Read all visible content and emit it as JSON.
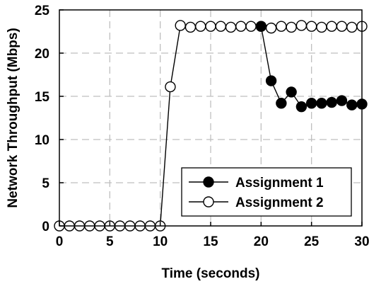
{
  "chart_data": {
    "type": "line",
    "title": "",
    "xlabel": "Time (seconds)",
    "ylabel": "Network Throughput (Mbps)",
    "xlim": [
      0,
      30
    ],
    "ylim": [
      0,
      25
    ],
    "xticks": [
      0,
      5,
      10,
      15,
      20,
      25,
      30
    ],
    "yticks": [
      0,
      5,
      10,
      15,
      20,
      25
    ],
    "grid": true,
    "legend_position": "bottom-right",
    "series": [
      {
        "name": "Assignment 1",
        "marker": "filled-circle",
        "color": "#000000",
        "x": [
          20,
          21,
          22,
          23,
          24,
          25,
          26,
          27,
          28,
          29,
          30
        ],
        "y": [
          23.1,
          16.8,
          14.2,
          15.5,
          13.8,
          14.2,
          14.2,
          14.3,
          14.5,
          14.0,
          14.1
        ]
      },
      {
        "name": "Assignment 2",
        "marker": "open-circle",
        "color": "#000000",
        "x": [
          0,
          1,
          2,
          3,
          4,
          5,
          6,
          7,
          8,
          9,
          10,
          11,
          12,
          13,
          14,
          15,
          16,
          17,
          18,
          19,
          20,
          21,
          22,
          23,
          24,
          25,
          26,
          27,
          28,
          29,
          30
        ],
        "y": [
          0,
          0,
          0,
          0,
          0,
          0,
          0,
          0,
          0,
          0,
          0,
          16.1,
          23.2,
          23.0,
          23.1,
          23.1,
          23.1,
          23.0,
          23.1,
          23.1,
          23.1,
          22.9,
          23.1,
          23.0,
          23.2,
          23.1,
          23.0,
          23.1,
          23.1,
          23.0,
          23.1
        ]
      }
    ]
  }
}
